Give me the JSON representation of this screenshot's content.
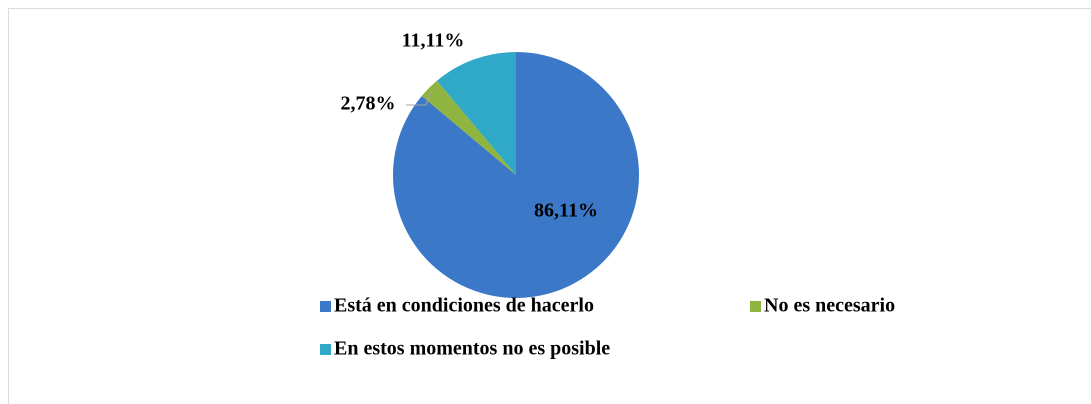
{
  "chart_data": {
    "type": "pie",
    "categories": [
      "Está en condiciones de hacerlo",
      "No es necesario",
      "En estos momentos no es posible"
    ],
    "values": [
      86.11,
      2.78,
      11.11
    ],
    "value_labels": [
      "86,11%",
      "2,78%",
      "11,11%"
    ],
    "colors": [
      "#3b78c8",
      "#8fb43f",
      "#30a9c9"
    ],
    "legend": "bottom"
  }
}
